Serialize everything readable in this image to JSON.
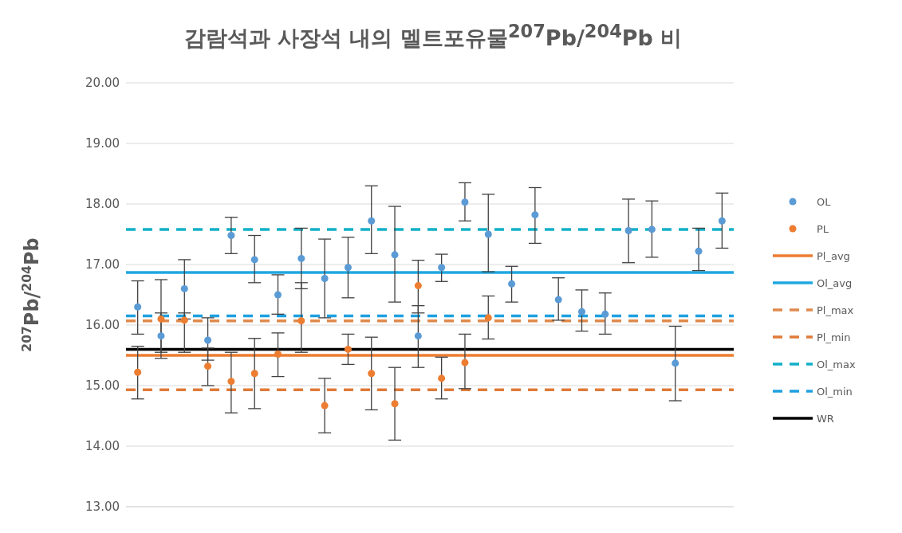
{
  "chart_data": {
    "type": "scatter",
    "title": "감람석과 사장석 내의 멜트포유물$^{207}$Pb/$^{204}$Pb 비",
    "ylabel": "$^{207}$Pb/$^{204}$Pb",
    "categories": [
      null,
      null,
      null,
      null,
      null,
      null,
      null,
      null,
      null,
      null,
      null,
      null,
      null,
      null,
      null,
      null,
      null,
      null,
      null,
      null,
      null,
      null,
      null,
      null,
      null,
      null
    ],
    "series": [
      {
        "name": "OL",
        "color": "#5b9bd5",
        "values": [
          16.3,
          15.82,
          16.6,
          15.75,
          17.48,
          17.08,
          16.5,
          17.1,
          16.77,
          16.95,
          17.72,
          17.16,
          15.82,
          16.95,
          18.03,
          17.5,
          16.68,
          17.82,
          16.42,
          16.22,
          16.18,
          17.56,
          17.58,
          15.37,
          17.22,
          17.72
        ],
        "errors": [
          [
            15.85,
            16.73
          ],
          [
            15.45,
            16.2
          ],
          [
            16.1,
            17.08
          ],
          [
            15.42,
            16.12
          ],
          [
            17.18,
            17.78
          ],
          [
            16.7,
            17.48
          ],
          [
            16.18,
            16.83
          ],
          [
            16.6,
            17.6
          ],
          [
            16.12,
            17.42
          ],
          [
            16.45,
            17.45
          ],
          [
            17.18,
            18.3
          ],
          [
            16.38,
            17.96
          ],
          [
            15.3,
            16.32
          ],
          [
            16.72,
            17.17
          ],
          [
            17.72,
            18.35
          ],
          [
            16.88,
            18.16
          ],
          [
            16.38,
            16.97
          ],
          [
            17.35,
            18.27
          ],
          [
            16.08,
            16.78
          ],
          [
            15.9,
            16.58
          ],
          [
            15.85,
            16.53
          ],
          [
            17.03,
            18.08
          ],
          [
            17.12,
            18.05
          ],
          [
            14.75,
            15.98
          ],
          [
            16.9,
            17.6
          ],
          [
            17.27,
            18.18
          ]
        ]
      },
      {
        "name": "PL",
        "color": "#ed7d31",
        "values": [
          15.22,
          16.1,
          16.08,
          15.32,
          15.07,
          15.2,
          15.52,
          16.07,
          14.67,
          15.6,
          15.2,
          14.7,
          16.65,
          15.12,
          15.38,
          16.12,
          null,
          null,
          null,
          null,
          null,
          null,
          null,
          null,
          null,
          null
        ],
        "errors": [
          [
            14.78,
            15.65
          ],
          [
            15.55,
            16.75
          ],
          [
            15.55,
            16.2
          ],
          [
            15.0,
            15.62
          ],
          [
            14.55,
            15.55
          ],
          [
            14.62,
            15.78
          ],
          [
            15.15,
            15.87
          ],
          [
            15.55,
            16.7
          ],
          [
            14.22,
            15.12
          ],
          [
            15.35,
            15.85
          ],
          [
            14.6,
            15.8
          ],
          [
            14.1,
            15.3
          ],
          [
            16.2,
            17.07
          ],
          [
            14.78,
            15.47
          ],
          [
            14.95,
            15.85
          ],
          [
            15.77,
            16.48
          ],
          null,
          null,
          null,
          null,
          null,
          null,
          null,
          null,
          null,
          null
        ]
      }
    ],
    "ref_lines": [
      {
        "axis": "y",
        "value": 15.5,
        "label": "Pl_avg",
        "color": "#ed7d31",
        "line_style": "solid"
      },
      {
        "axis": "y",
        "value": 16.87,
        "label": "Ol_avg",
        "color": "#1fa8e0",
        "line_style": "solid"
      },
      {
        "axis": "y",
        "value": 16.07,
        "label": "Pl_max",
        "color": "#e08a4c",
        "line_style": "dashed"
      },
      {
        "axis": "y",
        "value": 14.93,
        "label": "Pl_min",
        "color": "#e07b39",
        "line_style": "dashed"
      },
      {
        "axis": "y",
        "value": 17.58,
        "label": "Ol_max",
        "color": "#12b0c8",
        "line_style": "dashed"
      },
      {
        "axis": "y",
        "value": 16.15,
        "label": "Ol_min",
        "color": "#1fa0e0",
        "line_style": "dashed"
      },
      {
        "axis": "y",
        "value": 15.6,
        "label": "WR",
        "color": "#000000",
        "line_style": "solid"
      }
    ],
    "ylim": [
      13,
      20
    ],
    "yticks": [
      {
        "value": 13,
        "label": "13.00"
      },
      {
        "value": 14,
        "label": "14.00"
      },
      {
        "value": 15,
        "label": "15.00"
      },
      {
        "value": 16,
        "label": "16.00"
      },
      {
        "value": 17,
        "label": "17.00"
      },
      {
        "value": 18,
        "label": "18.00"
      },
      {
        "value": 19,
        "label": "19.00"
      },
      {
        "value": 20,
        "label": "20.00"
      }
    ],
    "tick_labels": "y",
    "grid": "y",
    "legend": "right",
    "marker": "circle"
  }
}
